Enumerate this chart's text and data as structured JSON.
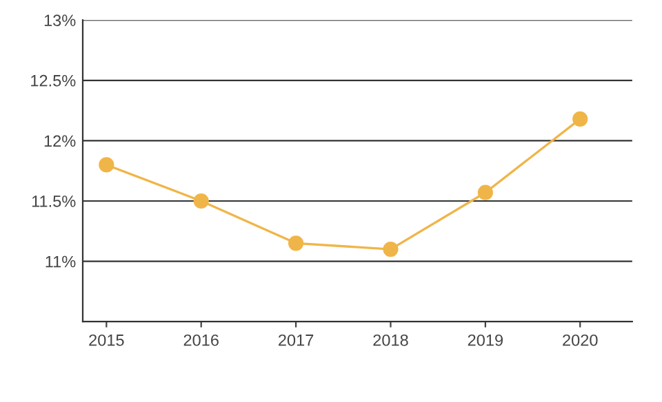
{
  "chart_data": {
    "type": "line",
    "categories": [
      "2015",
      "2016",
      "2017",
      "2018",
      "2019",
      "2020"
    ],
    "series": [
      {
        "color": "#f0b548",
        "values": [
          11.8,
          11.5,
          11.15,
          11.1,
          11.57,
          12.18
        ]
      }
    ],
    "ylim": [
      10.5,
      13
    ],
    "yticks": [
      {
        "value": 11,
        "label": "11%"
      },
      {
        "value": 11.5,
        "label": "11.5%"
      },
      {
        "value": 12,
        "label": "12%"
      },
      {
        "value": 12.5,
        "label": "12.5%"
      },
      {
        "value": 13,
        "label": "13%"
      }
    ],
    "grid": "y",
    "marker": "circle",
    "line_style": "solid",
    "legend": false
  }
}
